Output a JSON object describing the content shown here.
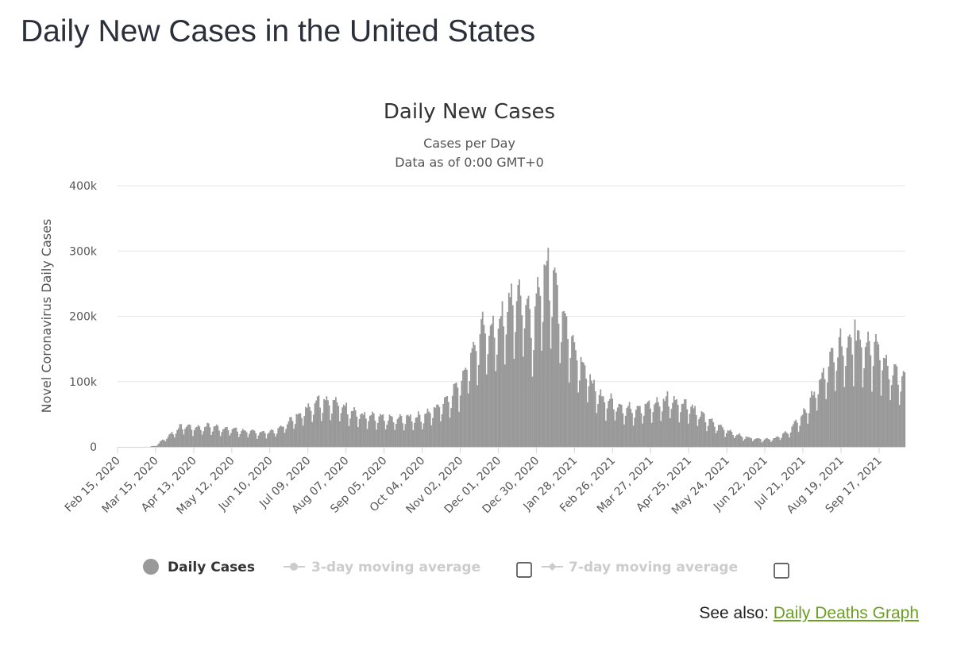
{
  "page_title": "Daily New Cases in the United States",
  "see_also": {
    "label": "See also:",
    "link_text": "Daily Deaths Graph"
  },
  "colors": {
    "bar": "#999999",
    "grid": "#e6e6e6",
    "axis": "#ccd6eb",
    "legend_active": "#333333",
    "legend_inactive": "#cccccc",
    "link": "#6a9e24"
  },
  "chart_data": {
    "type": "bar",
    "title": "Daily New Cases",
    "subtitle": [
      "Cases per Day",
      "Data as of 0:00 GMT+0"
    ],
    "ylabel": "Novel Coronavirus Daily Cases",
    "ylim": [
      0,
      400000
    ],
    "y_ticks": [
      {
        "value": 0,
        "label": "0"
      },
      {
        "value": 100000,
        "label": "100k"
      },
      {
        "value": 200000,
        "label": "200k"
      },
      {
        "value": 300000,
        "label": "300k"
      },
      {
        "value": 400000,
        "label": "400k"
      }
    ],
    "x_range": [
      "2020-02-15",
      "2021-10-07"
    ],
    "x_tick_labels": [
      "Feb 15, 2020",
      "Mar 15, 2020",
      "Apr 13, 2020",
      "May 12, 2020",
      "Jun 10, 2020",
      "Jul 09, 2020",
      "Aug 07, 2020",
      "Sep 05, 2020",
      "Oct 04, 2020",
      "Nov 02, 2020",
      "Dec 01, 2020",
      "Dec 30, 2020",
      "Jan 28, 2021",
      "Feb 26, 2021",
      "Mar 27, 2021",
      "Apr 25, 2021",
      "May 24, 2021",
      "Jun 22, 2021",
      "Jul 21, 2021",
      "Aug 19, 2021",
      "Sep 17, 2021"
    ],
    "trend_points": [
      [
        "2020-02-15",
        0
      ],
      [
        "2020-03-01",
        50
      ],
      [
        "2020-03-10",
        500
      ],
      [
        "2020-03-15",
        2000
      ],
      [
        "2020-03-20",
        10000
      ],
      [
        "2020-03-25",
        17000
      ],
      [
        "2020-04-01",
        27000
      ],
      [
        "2020-04-05",
        31000
      ],
      [
        "2020-04-13",
        28000
      ],
      [
        "2020-04-24",
        30000
      ],
      [
        "2020-05-05",
        27000
      ],
      [
        "2020-05-15",
        25000
      ],
      [
        "2020-05-25",
        22000
      ],
      [
        "2020-06-05",
        21000
      ],
      [
        "2020-06-15",
        24000
      ],
      [
        "2020-06-25",
        38000
      ],
      [
        "2020-07-05",
        52000
      ],
      [
        "2020-07-16",
        67000
      ],
      [
        "2020-07-24",
        68000
      ],
      [
        "2020-08-07",
        57000
      ],
      [
        "2020-08-20",
        45000
      ],
      [
        "2020-09-05",
        41000
      ],
      [
        "2020-09-15",
        40000
      ],
      [
        "2020-09-25",
        43000
      ],
      [
        "2020-10-04",
        44000
      ],
      [
        "2020-10-15",
        57000
      ],
      [
        "2020-10-25",
        74000
      ],
      [
        "2020-11-02",
        95000
      ],
      [
        "2020-11-10",
        135000
      ],
      [
        "2020-11-20",
        170000
      ],
      [
        "2020-12-01",
        175000
      ],
      [
        "2020-12-10",
        210000
      ],
      [
        "2020-12-18",
        220000
      ],
      [
        "2020-12-28",
        180000
      ],
      [
        "2021-01-03",
        240000
      ],
      [
        "2021-01-08",
        260000
      ],
      [
        "2021-01-15",
        220000
      ],
      [
        "2021-01-25",
        160000
      ],
      [
        "2021-02-05",
        115000
      ],
      [
        "2021-02-15",
        75000
      ],
      [
        "2021-02-26",
        65000
      ],
      [
        "2021-03-10",
        55000
      ],
      [
        "2021-03-27",
        60000
      ],
      [
        "2021-04-10",
        68000
      ],
      [
        "2021-04-25",
        62000
      ],
      [
        "2021-05-05",
        45000
      ],
      [
        "2021-05-15",
        33000
      ],
      [
        "2021-05-24",
        25000
      ],
      [
        "2021-06-05",
        15000
      ],
      [
        "2021-06-22",
        11000
      ],
      [
        "2021-07-01",
        13000
      ],
      [
        "2021-07-10",
        22000
      ],
      [
        "2021-07-21",
        45000
      ],
      [
        "2021-08-01",
        85000
      ],
      [
        "2021-08-10",
        120000
      ],
      [
        "2021-08-19",
        145000
      ],
      [
        "2021-08-30",
        160000
      ],
      [
        "2021-09-05",
        155000
      ],
      [
        "2021-09-17",
        140000
      ],
      [
        "2021-09-27",
        110000
      ],
      [
        "2021-10-07",
        95000
      ]
    ],
    "peaks": [
      {
        "date": "2020-04-24",
        "value": 36000
      },
      {
        "date": "2020-07-16",
        "value": 77000
      },
      {
        "date": "2020-12-11",
        "value": 250000
      },
      {
        "date": "2021-01-08",
        "value": 305000
      },
      {
        "date": "2021-04-09",
        "value": 85000
      },
      {
        "date": "2021-08-30",
        "value": 195000
      }
    ],
    "legend": [
      {
        "label": "Daily Cases",
        "active": true
      },
      {
        "label": "3-day moving average",
        "active": false
      },
      {
        "label": "7-day moving average",
        "active": false
      }
    ]
  }
}
